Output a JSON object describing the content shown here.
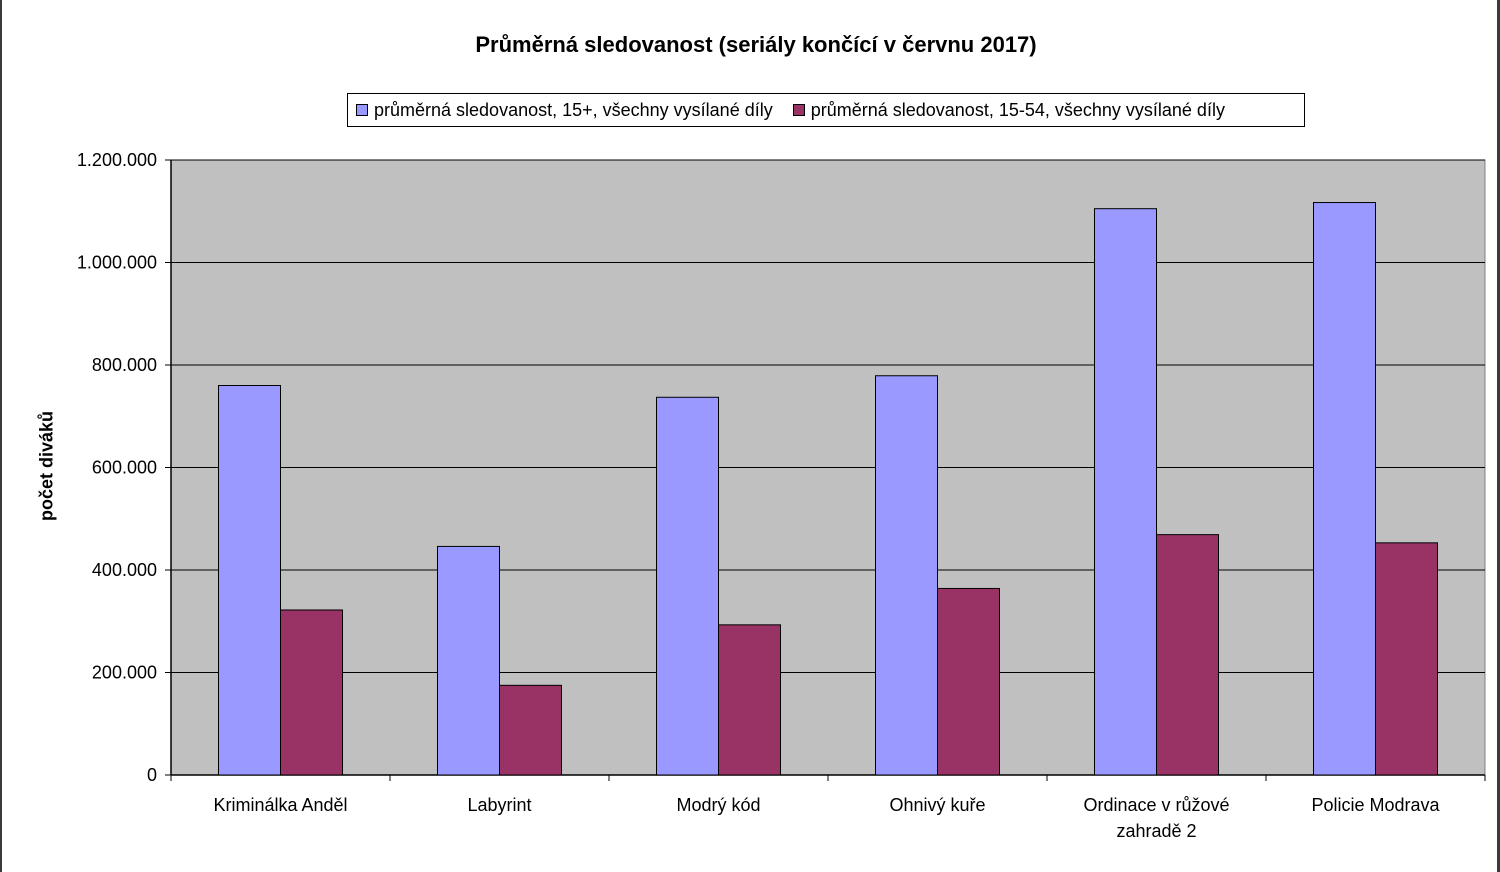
{
  "chart_data": {
    "type": "bar",
    "title": "Průměrná sledovanost (seriály končící v červnu 2017)",
    "xlabel": "",
    "ylabel": "počet diváků",
    "ylim": [
      0,
      1200000
    ],
    "yticks": [
      0,
      200000,
      400000,
      600000,
      800000,
      1000000,
      1200000
    ],
    "ytick_labels": [
      "0",
      "200.000",
      "400.000",
      "600.000",
      "800.000",
      "1.000.000",
      "1.200.000"
    ],
    "grid": true,
    "legend_position": "top",
    "categories": [
      "Kriminálka Anděl",
      "Labyrint",
      "Modrý kód",
      "Ohnivý kuře",
      "Ordinace v růžové zahradě 2",
      "Policie Modrava"
    ],
    "category_lines": [
      [
        "Kriminálka Anděl"
      ],
      [
        "Labyrint"
      ],
      [
        "Modrý kód"
      ],
      [
        "Ohnivý kuře"
      ],
      [
        "Ordinace v růžové",
        "zahradě 2"
      ],
      [
        "Policie Modrava"
      ]
    ],
    "series": [
      {
        "name": "průměrná sledovanost, 15+, všechny vysílané díly",
        "color": "#9999ff",
        "values": [
          760000,
          446000,
          737000,
          779000,
          1105000,
          1117000
        ]
      },
      {
        "name": "průměrná sledovanost, 15-54, všechny vysílané díly",
        "color": "#993366",
        "values": [
          322000,
          175000,
          293000,
          364000,
          469000,
          453000
        ]
      }
    ],
    "plot_background": "#c0c0c0"
  }
}
